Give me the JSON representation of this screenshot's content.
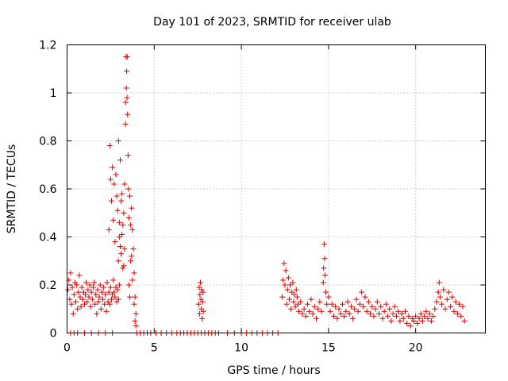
{
  "chart_data": {
    "type": "scatter",
    "title": "Day 101 of 2023, SRMTID for receiver ulab",
    "xlabel": "GPS time / hours",
    "ylabel": "SRMTID / TECUs",
    "xlim": [
      0,
      24
    ],
    "ylim": [
      0,
      1.2
    ],
    "xticks": [
      0,
      5,
      10,
      15,
      20
    ],
    "xtick_labels": [
      "0",
      "5",
      "10",
      "15",
      "20"
    ],
    "yticks": [
      0,
      0.2,
      0.4,
      0.6,
      0.8,
      1,
      1.2
    ],
    "ytick_labels": [
      "0",
      "0.2",
      "0.4",
      "0.6",
      "0.8",
      "1",
      "1.2"
    ],
    "grid": true,
    "marker": "+",
    "marker_color": "#e00000",
    "series": [
      {
        "name": "SRMTID",
        "points": [
          [
            0.05,
            0.18
          ],
          [
            0.1,
            0.22
          ],
          [
            0.15,
            0.14
          ],
          [
            0.2,
            0.25
          ],
          [
            0.25,
            0.12
          ],
          [
            0.3,
            0.19
          ],
          [
            0.35,
            0.08
          ],
          [
            0.4,
            0.16
          ],
          [
            0.45,
            0.21
          ],
          [
            0.5,
            0.13
          ],
          [
            0.55,
            0.2
          ],
          [
            0.6,
            0.1
          ],
          [
            0.65,
            0.17
          ],
          [
            0.7,
            0.24
          ],
          [
            0.75,
            0.15
          ],
          [
            0.8,
            0.11
          ],
          [
            0.85,
            0.19
          ],
          [
            0.9,
            0.14
          ],
          [
            0.95,
            0.17
          ],
          [
            1.0,
            0.12
          ],
          [
            1.05,
            0.16
          ],
          [
            1.1,
            0.21
          ],
          [
            1.15,
            0.13
          ],
          [
            1.2,
            0.18
          ],
          [
            1.25,
            0.15
          ],
          [
            1.3,
            0.2
          ],
          [
            1.35,
            0.11
          ],
          [
            1.4,
            0.17
          ],
          [
            1.45,
            0.14
          ],
          [
            1.5,
            0.19
          ],
          [
            1.55,
            0.21
          ],
          [
            1.6,
            0.12
          ],
          [
            1.65,
            0.16
          ],
          [
            1.7,
            0.08
          ],
          [
            1.75,
            0.18
          ],
          [
            1.8,
            0.13
          ],
          [
            1.85,
            0.15
          ],
          [
            1.9,
            0.2
          ],
          [
            1.95,
            0.1
          ],
          [
            2.0,
            0.17
          ],
          [
            2.05,
            0.14
          ],
          [
            2.1,
            0.19
          ],
          [
            2.15,
            0.12
          ],
          [
            2.2,
            0.16
          ],
          [
            2.25,
            0.09
          ],
          [
            2.3,
            0.21
          ],
          [
            2.35,
            0.13
          ],
          [
            2.4,
            0.17
          ],
          [
            2.45,
            0.12
          ],
          [
            2.5,
            0.19
          ],
          [
            2.55,
            0.14
          ],
          [
            2.6,
            0.16
          ],
          [
            2.65,
            0.22
          ],
          [
            2.7,
            0.17
          ],
          [
            2.75,
            0.15
          ],
          [
            2.8,
            0.19
          ],
          [
            2.85,
            0.13
          ],
          [
            2.9,
            0.18
          ],
          [
            2.95,
            0.14
          ],
          [
            3.0,
            0.2
          ],
          [
            2.4,
            0.43
          ],
          [
            2.45,
            0.78
          ],
          [
            2.5,
            0.64
          ],
          [
            2.55,
            0.55
          ],
          [
            2.6,
            0.69
          ],
          [
            2.65,
            0.47
          ],
          [
            2.7,
            0.62
          ],
          [
            2.75,
            0.38
          ],
          [
            2.8,
            0.66
          ],
          [
            2.85,
            0.57
          ],
          [
            2.9,
            0.51
          ],
          [
            2.95,
            0.8
          ],
          [
            3.0,
            0.4
          ],
          [
            3.05,
            0.72
          ],
          [
            3.1,
            0.33
          ],
          [
            3.15,
            0.58
          ],
          [
            3.2,
            0.45
          ],
          [
            3.25,
            0.28
          ],
          [
            3.3,
            0.35
          ],
          [
            3.35,
            0.87
          ],
          [
            3.38,
            1.15
          ],
          [
            3.42,
            1.09
          ],
          [
            3.45,
            1.15
          ],
          [
            3.47,
            0.91
          ],
          [
            3.5,
            0.74
          ],
          [
            3.4,
            1.02
          ],
          [
            3.44,
            0.98
          ],
          [
            3.36,
            0.96
          ],
          [
            3.52,
            0.6
          ],
          [
            3.55,
            0.48
          ],
          [
            3.6,
            0.57
          ],
          [
            3.65,
            0.3
          ],
          [
            3.7,
            0.52
          ],
          [
            3.75,
            0.43
          ],
          [
            3.8,
            0.35
          ],
          [
            3.85,
            0.25
          ],
          [
            3.9,
            0.15
          ],
          [
            3.95,
            0.08
          ],
          [
            3.3,
            0.62
          ],
          [
            3.25,
            0.5
          ],
          [
            3.2,
            0.27
          ],
          [
            3.15,
            0.41
          ],
          [
            3.1,
            0.55
          ],
          [
            3.05,
            0.36
          ],
          [
            3.0,
            0.46
          ],
          [
            2.95,
            0.3
          ],
          [
            3.55,
            0.2
          ],
          [
            3.6,
            0.15
          ],
          [
            3.65,
            0.45
          ],
          [
            3.7,
            0.32
          ],
          [
            3.75,
            0.22
          ],
          [
            3.85,
            0.12
          ],
          [
            3.9,
            0.05
          ],
          [
            3.95,
            0.03
          ],
          [
            0.2,
            0.0
          ],
          [
            0.4,
            0.0
          ],
          [
            0.6,
            0.0
          ],
          [
            1.0,
            0.0
          ],
          [
            1.4,
            0.0
          ],
          [
            1.8,
            0.0
          ],
          [
            2.2,
            0.0
          ],
          [
            2.6,
            0.0
          ],
          [
            4.0,
            0.0
          ],
          [
            4.2,
            0.0
          ],
          [
            4.4,
            0.0
          ],
          [
            4.6,
            0.0
          ],
          [
            4.8,
            0.0
          ],
          [
            5.1,
            0.0
          ],
          [
            5.4,
            0.0
          ],
          [
            5.7,
            0.0
          ],
          [
            6.0,
            0.0
          ],
          [
            6.3,
            0.0
          ],
          [
            6.5,
            0.0
          ],
          [
            6.7,
            0.0
          ],
          [
            6.9,
            0.0
          ],
          [
            7.1,
            0.0
          ],
          [
            7.3,
            0.0
          ],
          [
            7.5,
            0.0
          ],
          [
            7.7,
            0.0
          ],
          [
            7.9,
            0.0
          ],
          [
            8.1,
            0.0
          ],
          [
            8.3,
            0.0
          ],
          [
            8.5,
            0.0
          ],
          [
            8.7,
            0.0
          ],
          [
            9.2,
            0.0
          ],
          [
            9.6,
            0.0
          ],
          [
            10.0,
            0.0
          ],
          [
            10.3,
            0.0
          ],
          [
            10.6,
            0.0
          ],
          [
            10.9,
            0.0
          ],
          [
            11.2,
            0.0
          ],
          [
            11.5,
            0.0
          ],
          [
            11.8,
            0.0
          ],
          [
            12.1,
            0.0
          ],
          [
            7.55,
            0.12
          ],
          [
            7.58,
            0.19
          ],
          [
            7.6,
            0.08
          ],
          [
            7.62,
            0.16
          ],
          [
            7.65,
            0.21
          ],
          [
            7.68,
            0.14
          ],
          [
            7.7,
            0.1
          ],
          [
            7.72,
            0.18
          ],
          [
            7.75,
            0.06
          ],
          [
            7.78,
            0.13
          ],
          [
            7.8,
            0.17
          ],
          [
            7.82,
            0.09
          ],
          [
            12.35,
            0.15
          ],
          [
            12.4,
            0.22
          ],
          [
            12.45,
            0.29
          ],
          [
            12.5,
            0.2
          ],
          [
            12.55,
            0.26
          ],
          [
            12.6,
            0.12
          ],
          [
            12.65,
            0.18
          ],
          [
            12.7,
            0.23
          ],
          [
            12.75,
            0.14
          ],
          [
            12.8,
            0.2
          ],
          [
            12.85,
            0.1
          ],
          [
            12.9,
            0.17
          ],
          [
            12.95,
            0.21
          ],
          [
            13.0,
            0.13
          ],
          [
            13.05,
            0.16
          ],
          [
            13.1,
            0.11
          ],
          [
            13.15,
            0.18
          ],
          [
            13.2,
            0.15
          ],
          [
            13.25,
            0.12
          ],
          [
            13.3,
            0.09
          ],
          [
            13.4,
            0.13
          ],
          [
            13.5,
            0.08
          ],
          [
            13.6,
            0.1
          ],
          [
            13.7,
            0.07
          ],
          [
            13.8,
            0.12
          ],
          [
            13.9,
            0.09
          ],
          [
            14.0,
            0.14
          ],
          [
            14.1,
            0.08
          ],
          [
            14.2,
            0.11
          ],
          [
            14.3,
            0.06
          ],
          [
            14.4,
            0.1
          ],
          [
            14.5,
            0.13
          ],
          [
            14.6,
            0.09
          ],
          [
            14.7,
            0.21
          ],
          [
            14.72,
            0.27
          ],
          [
            14.75,
            0.37
          ],
          [
            14.78,
            0.31
          ],
          [
            14.8,
            0.24
          ],
          [
            14.85,
            0.17
          ],
          [
            14.9,
            0.12
          ],
          [
            15.0,
            0.15
          ],
          [
            15.1,
            0.09
          ],
          [
            15.2,
            0.12
          ],
          [
            15.3,
            0.07
          ],
          [
            15.4,
            0.11
          ],
          [
            15.5,
            0.06
          ],
          [
            15.6,
            0.1
          ],
          [
            15.7,
            0.08
          ],
          [
            15.8,
            0.12
          ],
          [
            15.9,
            0.07
          ],
          [
            16.0,
            0.09
          ],
          [
            16.1,
            0.13
          ],
          [
            16.2,
            0.08
          ],
          [
            16.3,
            0.11
          ],
          [
            16.4,
            0.06
          ],
          [
            16.5,
            0.1
          ],
          [
            16.6,
            0.14
          ],
          [
            16.7,
            0.09
          ],
          [
            16.8,
            0.12
          ],
          [
            16.9,
            0.17
          ],
          [
            17.0,
            0.11
          ],
          [
            17.1,
            0.15
          ],
          [
            17.2,
            0.09
          ],
          [
            17.3,
            0.13
          ],
          [
            17.4,
            0.08
          ],
          [
            17.5,
            0.11
          ],
          [
            17.6,
            0.07
          ],
          [
            17.7,
            0.1
          ],
          [
            17.8,
            0.13
          ],
          [
            17.9,
            0.08
          ],
          [
            18.0,
            0.11
          ],
          [
            18.1,
            0.06
          ],
          [
            18.2,
            0.09
          ],
          [
            18.3,
            0.12
          ],
          [
            18.4,
            0.07
          ],
          [
            18.5,
            0.1
          ],
          [
            18.6,
            0.05
          ],
          [
            18.7,
            0.08
          ],
          [
            18.8,
            0.11
          ],
          [
            18.9,
            0.07
          ],
          [
            19.0,
            0.09
          ],
          [
            19.1,
            0.05
          ],
          [
            19.2,
            0.08
          ],
          [
            19.3,
            0.06
          ],
          [
            19.4,
            0.09
          ],
          [
            19.5,
            0.04
          ],
          [
            19.6,
            0.07
          ],
          [
            19.7,
            0.03
          ],
          [
            19.8,
            0.06
          ],
          [
            19.9,
            0.05
          ],
          [
            20.0,
            0.07
          ],
          [
            20.1,
            0.04
          ],
          [
            20.2,
            0.06
          ],
          [
            20.3,
            0.08
          ],
          [
            20.4,
            0.05
          ],
          [
            20.5,
            0.07
          ],
          [
            20.6,
            0.09
          ],
          [
            20.7,
            0.06
          ],
          [
            20.8,
            0.08
          ],
          [
            20.9,
            0.05
          ],
          [
            21.0,
            0.07
          ],
          [
            21.1,
            0.1
          ],
          [
            21.2,
            0.13
          ],
          [
            21.3,
            0.17
          ],
          [
            21.35,
            0.21
          ],
          [
            21.4,
            0.15
          ],
          [
            21.5,
            0.12
          ],
          [
            21.6,
            0.18
          ],
          [
            21.7,
            0.1
          ],
          [
            21.8,
            0.14
          ],
          [
            21.9,
            0.17
          ],
          [
            22.0,
            0.11
          ],
          [
            22.1,
            0.15
          ],
          [
            22.2,
            0.09
          ],
          [
            22.3,
            0.13
          ],
          [
            22.4,
            0.08
          ],
          [
            22.5,
            0.12
          ],
          [
            22.6,
            0.07
          ],
          [
            22.7,
            0.11
          ],
          [
            22.8,
            0.05
          ]
        ]
      }
    ]
  }
}
